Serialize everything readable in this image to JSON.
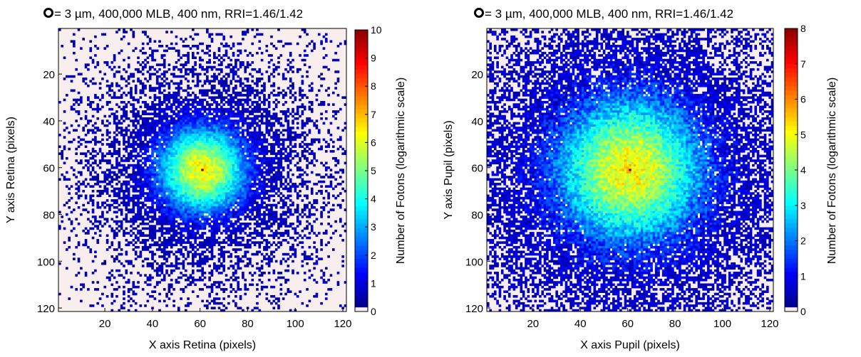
{
  "chart_data": [
    {
      "type": "heatmap",
      "title_marker": "O",
      "title": "= 3 µm, 400,000 MLB, 400 nm, RRI=1.46/1.42",
      "xlabel": "X axis Retina (pixels)",
      "ylabel": "Y axis Retina (pixels)",
      "xlim": [
        1,
        121
      ],
      "ylim": [
        1,
        121
      ],
      "y_reversed": true,
      "x_ticks": [
        "20",
        "40",
        "60",
        "80",
        "100",
        "120"
      ],
      "y_ticks": [
        "20",
        "40",
        "60",
        "80",
        "100",
        "120"
      ],
      "grid_size": 121,
      "peak": {
        "x": 61,
        "y": 61,
        "value": 10
      },
      "spread_sigma": 13,
      "colorbar": {
        "label": "Number of Fotons (logarithmic scale)",
        "min": 0,
        "max": 10,
        "ticks": [
          "0",
          "1",
          "2",
          "3",
          "4",
          "5",
          "6",
          "7",
          "8",
          "9",
          "10"
        ],
        "colormap": "jet",
        "zero_color": "#f8eeee"
      }
    },
    {
      "type": "heatmap",
      "title_marker": "O",
      "title": "= 3 µm, 400,000 MLB, 400 nm, RRI=1.46/1.42",
      "xlabel": "X axis Pupil (pixels)",
      "ylabel": "Y axis Pupil (pixels)",
      "xlim": [
        1,
        121
      ],
      "ylim": [
        1,
        121
      ],
      "y_reversed": true,
      "x_ticks": [
        "20",
        "40",
        "60",
        "80",
        "100",
        "120"
      ],
      "y_ticks": [
        "20",
        "40",
        "60",
        "80",
        "100",
        "120"
      ],
      "grid_size": 121,
      "peak": {
        "x": 61,
        "y": 61,
        "value": 8
      },
      "spread_sigma": 22,
      "colorbar": {
        "label": "Number of Fotons (logarithmic scale)",
        "min": 0,
        "max": 8,
        "ticks": [
          "0",
          "1",
          "2",
          "3",
          "4",
          "5",
          "6",
          "7",
          "8"
        ],
        "colormap": "jet",
        "zero_color": "#f8eeee"
      }
    }
  ]
}
